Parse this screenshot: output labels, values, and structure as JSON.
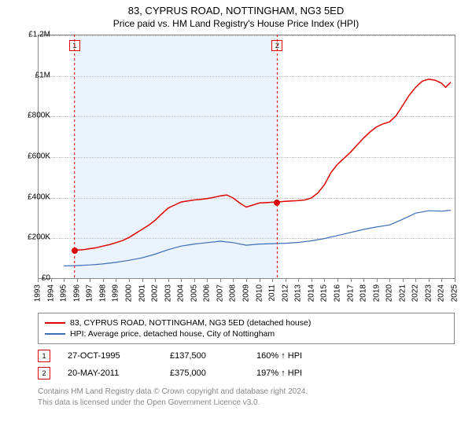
{
  "title": "83, CYPRUS ROAD, NOTTINGHAM, NG3 5ED",
  "subtitle": "Price paid vs. HM Land Registry's House Price Index (HPI)",
  "chart": {
    "type": "line",
    "background_color": "#ffffff",
    "shade_color": "#eaf3fb",
    "grid_color": "#c0c0c0",
    "axis_color": "#888888",
    "x_start_year": 1993,
    "x_end_year": 2025,
    "y_min": 0,
    "y_max": 1200000,
    "y_tick_step": 200000,
    "y_tick_labels": [
      "£0",
      "£200K",
      "£400K",
      "£600K",
      "£800K",
      "£1M",
      "£1.2M"
    ],
    "x_ticks": [
      1993,
      1994,
      1995,
      1996,
      1997,
      1998,
      1999,
      2000,
      2001,
      2002,
      2003,
      2004,
      2005,
      2006,
      2007,
      2008,
      2009,
      2010,
      2011,
      2012,
      2013,
      2014,
      2015,
      2016,
      2017,
      2018,
      2019,
      2020,
      2021,
      2022,
      2023,
      2024,
      2025
    ],
    "shade_start": 1995.82,
    "shade_end": 2011.38,
    "series": [
      {
        "name": "property",
        "label": "83, CYPRUS ROAD, NOTTINGHAM, NG3 5ED (detached house)",
        "color": "#e00000",
        "line_width": 1.5,
        "points": [
          [
            1995.82,
            137500
          ],
          [
            1996.5,
            140000
          ],
          [
            1997.0,
            145000
          ],
          [
            1997.5,
            150000
          ],
          [
            1998.0,
            158000
          ],
          [
            1998.5,
            165000
          ],
          [
            1999.0,
            175000
          ],
          [
            1999.5,
            185000
          ],
          [
            2000.0,
            200000
          ],
          [
            2000.5,
            220000
          ],
          [
            2001.0,
            240000
          ],
          [
            2001.5,
            260000
          ],
          [
            2002.0,
            285000
          ],
          [
            2002.5,
            315000
          ],
          [
            2003.0,
            345000
          ],
          [
            2003.5,
            360000
          ],
          [
            2004.0,
            375000
          ],
          [
            2004.5,
            380000
          ],
          [
            2005.0,
            385000
          ],
          [
            2005.5,
            388000
          ],
          [
            2006.0,
            392000
          ],
          [
            2006.5,
            398000
          ],
          [
            2007.0,
            405000
          ],
          [
            2007.5,
            410000
          ],
          [
            2008.0,
            395000
          ],
          [
            2008.5,
            370000
          ],
          [
            2009.0,
            350000
          ],
          [
            2009.5,
            360000
          ],
          [
            2010.0,
            370000
          ],
          [
            2010.5,
            372000
          ],
          [
            2011.0,
            374000
          ],
          [
            2011.38,
            375000
          ],
          [
            2012.0,
            378000
          ],
          [
            2012.5,
            380000
          ],
          [
            2013.0,
            382000
          ],
          [
            2013.5,
            385000
          ],
          [
            2014.0,
            395000
          ],
          [
            2014.5,
            420000
          ],
          [
            2015.0,
            460000
          ],
          [
            2015.5,
            520000
          ],
          [
            2016.0,
            560000
          ],
          [
            2016.5,
            590000
          ],
          [
            2017.0,
            620000
          ],
          [
            2017.5,
            655000
          ],
          [
            2018.0,
            690000
          ],
          [
            2018.5,
            720000
          ],
          [
            2019.0,
            745000
          ],
          [
            2019.5,
            760000
          ],
          [
            2020.0,
            770000
          ],
          [
            2020.5,
            800000
          ],
          [
            2021.0,
            850000
          ],
          [
            2021.5,
            900000
          ],
          [
            2022.0,
            940000
          ],
          [
            2022.5,
            970000
          ],
          [
            2023.0,
            980000
          ],
          [
            2023.5,
            975000
          ],
          [
            2024.0,
            960000
          ],
          [
            2024.3,
            940000
          ],
          [
            2024.7,
            965000
          ]
        ]
      },
      {
        "name": "hpi",
        "label": "HPI: Average price, detached house, City of Nottingham",
        "color": "#3b6db4",
        "line_width": 1.2,
        "points": [
          [
            1995.0,
            60000
          ],
          [
            1996.0,
            62000
          ],
          [
            1997.0,
            65000
          ],
          [
            1998.0,
            70000
          ],
          [
            1999.0,
            78000
          ],
          [
            2000.0,
            88000
          ],
          [
            2001.0,
            100000
          ],
          [
            2002.0,
            118000
          ],
          [
            2003.0,
            140000
          ],
          [
            2004.0,
            158000
          ],
          [
            2005.0,
            168000
          ],
          [
            2006.0,
            175000
          ],
          [
            2007.0,
            182000
          ],
          [
            2008.0,
            175000
          ],
          [
            2009.0,
            162000
          ],
          [
            2010.0,
            168000
          ],
          [
            2011.0,
            170000
          ],
          [
            2012.0,
            172000
          ],
          [
            2013.0,
            176000
          ],
          [
            2014.0,
            184000
          ],
          [
            2015.0,
            195000
          ],
          [
            2016.0,
            210000
          ],
          [
            2017.0,
            225000
          ],
          [
            2018.0,
            240000
          ],
          [
            2019.0,
            252000
          ],
          [
            2020.0,
            262000
          ],
          [
            2021.0,
            290000
          ],
          [
            2022.0,
            320000
          ],
          [
            2023.0,
            332000
          ],
          [
            2024.0,
            330000
          ],
          [
            2024.7,
            335000
          ]
        ]
      }
    ],
    "sale_markers": [
      {
        "n": "1",
        "year": 1995.82,
        "price": 137500,
        "color": "#e00000"
      },
      {
        "n": "2",
        "year": 2011.38,
        "price": 375000,
        "color": "#e00000"
      }
    ]
  },
  "sales": [
    {
      "n": "1",
      "date": "27-OCT-1995",
      "price": "£137,500",
      "hpi": "160% ↑ HPI",
      "color": "#e00000"
    },
    {
      "n": "2",
      "date": "20-MAY-2011",
      "price": "£375,000",
      "hpi": "197% ↑ HPI",
      "color": "#e00000"
    }
  ],
  "footer": {
    "line1": "Contains HM Land Registry data © Crown copyright and database right 2024.",
    "line2": "This data is licensed under the Open Government Licence v3.0."
  }
}
